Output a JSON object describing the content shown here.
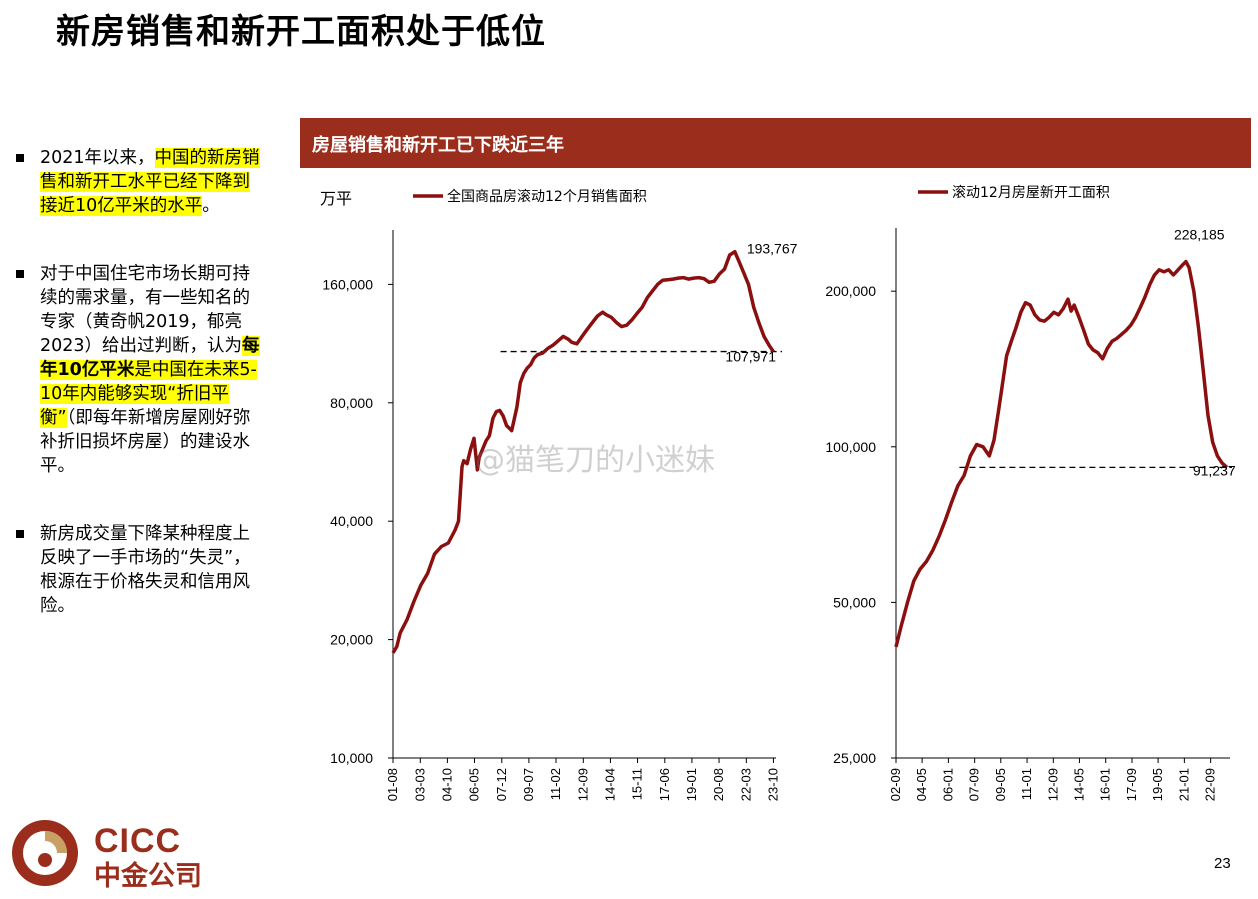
{
  "title": "新房销售和新开工面积处于低位",
  "bullets": [
    {
      "parts": [
        {
          "text": "2021年以来，",
          "hl": false,
          "bold": false
        },
        {
          "text": "中国的新房销售和新开工水平已经下降到接近10亿平米的水平",
          "hl": true,
          "bold": false
        },
        {
          "text": "。",
          "hl": false,
          "bold": false
        }
      ]
    },
    {
      "parts": [
        {
          "text": "对于中国住宅市场长期可持续的需求量，有一些知名的专家（黄奇帆2019，郁亮2023）给出过判断，认为",
          "hl": false,
          "bold": false
        },
        {
          "text": "每年10亿平米",
          "hl": true,
          "bold": true
        },
        {
          "text": "是中国在未来5-10年内能够实现“折旧平衡”",
          "hl": true,
          "bold": false
        },
        {
          "text": "（即每年新增房屋刚好弥补折旧损坏房屋）的建设水平。",
          "hl": false,
          "bold": false
        }
      ]
    },
    {
      "parts": [
        {
          "text": "新房成交量下降某种程度上反映了一手市场的“失灵”，根源在于价格失灵和信用风险。",
          "hl": false,
          "bold": false
        }
      ]
    }
  ],
  "banner": "房屋销售和新开工已下跌近三年",
  "watermark": "@猫笔刀的小迷妹",
  "logo": {
    "en": "CICC",
    "cn": "中金公司"
  },
  "page_number": "23",
  "colors": {
    "line": "#8b0f0f",
    "banner": "#9a2d1c",
    "highlight": "#ffff00"
  },
  "chart_data": [
    {
      "type": "line",
      "unit_label": "万平",
      "legend": "全国商品房滚动12个月销售面积",
      "yscale": "log",
      "ylim": [
        10000,
        220000
      ],
      "yticks": [
        10000,
        20000,
        40000,
        80000,
        160000
      ],
      "ytick_labels": [
        "10,000",
        "20,000",
        "40,000",
        "80,000",
        "160,000"
      ],
      "xlim": [
        2001.58,
        2023.9
      ],
      "xtick_labels": [
        "01-08",
        "03-03",
        "04-10",
        "06-05",
        "07-12",
        "09-07",
        "11-02",
        "12-09",
        "14-04",
        "15-11",
        "17-06",
        "19-01",
        "20-08",
        "22-03",
        "23-10"
      ],
      "xtick_values": [
        2001.58,
        2003.17,
        2004.75,
        2006.33,
        2007.92,
        2009.5,
        2011.08,
        2012.67,
        2014.25,
        2015.83,
        2017.42,
        2019.0,
        2020.58,
        2022.17,
        2023.75
      ],
      "series": [
        {
          "x": [
            2001.58,
            2001.8,
            2002.0,
            2002.4,
            2002.8,
            2003.2,
            2003.6,
            2004.0,
            2004.4,
            2004.8,
            2005.2,
            2005.4,
            2005.6,
            2005.7,
            2005.9,
            2006.1,
            2006.3,
            2006.5,
            2006.6,
            2006.8,
            2007.0,
            2007.2,
            2007.4,
            2007.6,
            2007.8,
            2008.0,
            2008.2,
            2008.5,
            2008.8,
            2009.0,
            2009.2,
            2009.4,
            2009.6,
            2009.8,
            2010.0,
            2010.3,
            2010.6,
            2010.9,
            2011.2,
            2011.5,
            2011.8,
            2012.0,
            2012.3,
            2012.6,
            2012.9,
            2013.2,
            2013.5,
            2013.8,
            2014.0,
            2014.3,
            2014.6,
            2014.9,
            2015.2,
            2015.5,
            2015.8,
            2016.1,
            2016.4,
            2016.7,
            2017.0,
            2017.3,
            2017.6,
            2017.9,
            2018.2,
            2018.5,
            2018.8,
            2019.1,
            2019.4,
            2019.7,
            2020.0,
            2020.3,
            2020.6,
            2020.9,
            2021.2,
            2021.5,
            2021.7,
            2022.0,
            2022.3,
            2022.6,
            2022.9,
            2023.2,
            2023.5,
            2023.75
          ],
          "y": [
            18500,
            19200,
            20800,
            22500,
            25000,
            27500,
            29500,
            33000,
            34500,
            35200,
            38000,
            40000,
            55000,
            57000,
            56000,
            61000,
            65000,
            54000,
            58000,
            61000,
            64000,
            66000,
            73000,
            76000,
            76500,
            74000,
            70000,
            68000,
            78000,
            90000,
            95000,
            98000,
            100000,
            104000,
            106000,
            107000,
            110000,
            112000,
            115000,
            118000,
            116000,
            114000,
            113000,
            118000,
            123000,
            128000,
            133000,
            136000,
            134000,
            132000,
            128000,
            125000,
            126000,
            130000,
            135000,
            140000,
            148000,
            154000,
            160000,
            164000,
            164500,
            165000,
            166000,
            166500,
            165000,
            166000,
            166500,
            165500,
            162000,
            163000,
            170000,
            175000,
            190000,
            193767,
            185000,
            172000,
            160000,
            140000,
            128000,
            118000,
            112000,
            107971
          ]
        }
      ],
      "reference_line": 107971,
      "annotations": [
        {
          "text": "193,767",
          "x": 2021.5,
          "y": 193767
        },
        {
          "text": "107,971",
          "x": 2023.75,
          "y": 107971
        }
      ]
    },
    {
      "type": "line",
      "legend": "滚动12月房屋新开工面积",
      "yscale": "log",
      "ylim": [
        25000,
        265000
      ],
      "yticks": [
        25000,
        50000,
        100000,
        200000
      ],
      "ytick_labels": [
        "25,000",
        "50,000",
        "100,000",
        "200,000"
      ],
      "xlim": [
        2002.67,
        2023.9
      ],
      "xtick_labels": [
        "02-09",
        "04-05",
        "06-01",
        "07-09",
        "09-05",
        "11-01",
        "12-09",
        "14-05",
        "16-01",
        "17-09",
        "19-05",
        "21-01",
        "22-09"
      ],
      "xtick_values": [
        2002.67,
        2004.33,
        2006.0,
        2007.67,
        2009.33,
        2011.0,
        2012.67,
        2014.33,
        2016.0,
        2017.67,
        2019.33,
        2021.0,
        2022.67
      ],
      "series": [
        {
          "x": [
            2002.67,
            2003.0,
            2003.4,
            2003.8,
            2004.2,
            2004.6,
            2005.0,
            2005.4,
            2005.8,
            2006.2,
            2006.6,
            2007.0,
            2007.4,
            2007.8,
            2008.2,
            2008.6,
            2008.9,
            2009.2,
            2009.4,
            2009.7,
            2010.0,
            2010.3,
            2010.6,
            2010.9,
            2011.2,
            2011.5,
            2011.8,
            2012.1,
            2012.4,
            2012.7,
            2013.0,
            2013.3,
            2013.6,
            2013.8,
            2014.0,
            2014.3,
            2014.6,
            2014.9,
            2015.2,
            2015.5,
            2015.8,
            2016.1,
            2016.4,
            2016.7,
            2017.0,
            2017.3,
            2017.6,
            2017.9,
            2018.2,
            2018.5,
            2018.8,
            2019.1,
            2019.4,
            2019.7,
            2020.0,
            2020.3,
            2020.6,
            2020.9,
            2021.1,
            2021.3,
            2021.6,
            2021.9,
            2022.2,
            2022.5,
            2022.8,
            2023.1,
            2023.4,
            2023.7
          ],
          "y": [
            41000,
            45000,
            50000,
            55000,
            58000,
            60000,
            63000,
            67000,
            72000,
            78000,
            84000,
            88000,
            96000,
            101000,
            100000,
            96000,
            103000,
            118000,
            130000,
            150000,
            160000,
            170000,
            182000,
            190000,
            188000,
            180000,
            176000,
            175000,
            178000,
            182000,
            180000,
            185000,
            193000,
            183000,
            188000,
            178000,
            168000,
            158000,
            154000,
            152000,
            148000,
            155000,
            160000,
            162000,
            165000,
            168000,
            172000,
            178000,
            186000,
            195000,
            206000,
            215000,
            220000,
            218000,
            220000,
            215000,
            220000,
            225000,
            228185,
            222000,
            200000,
            170000,
            140000,
            115000,
            102000,
            96000,
            93000,
            91237
          ]
        }
      ],
      "reference_line": 91237,
      "annotations": [
        {
          "text": "228,185",
          "x": 2021.1,
          "y": 228185
        },
        {
          "text": "91,237",
          "x": 2023.7,
          "y": 91237
        }
      ]
    }
  ]
}
